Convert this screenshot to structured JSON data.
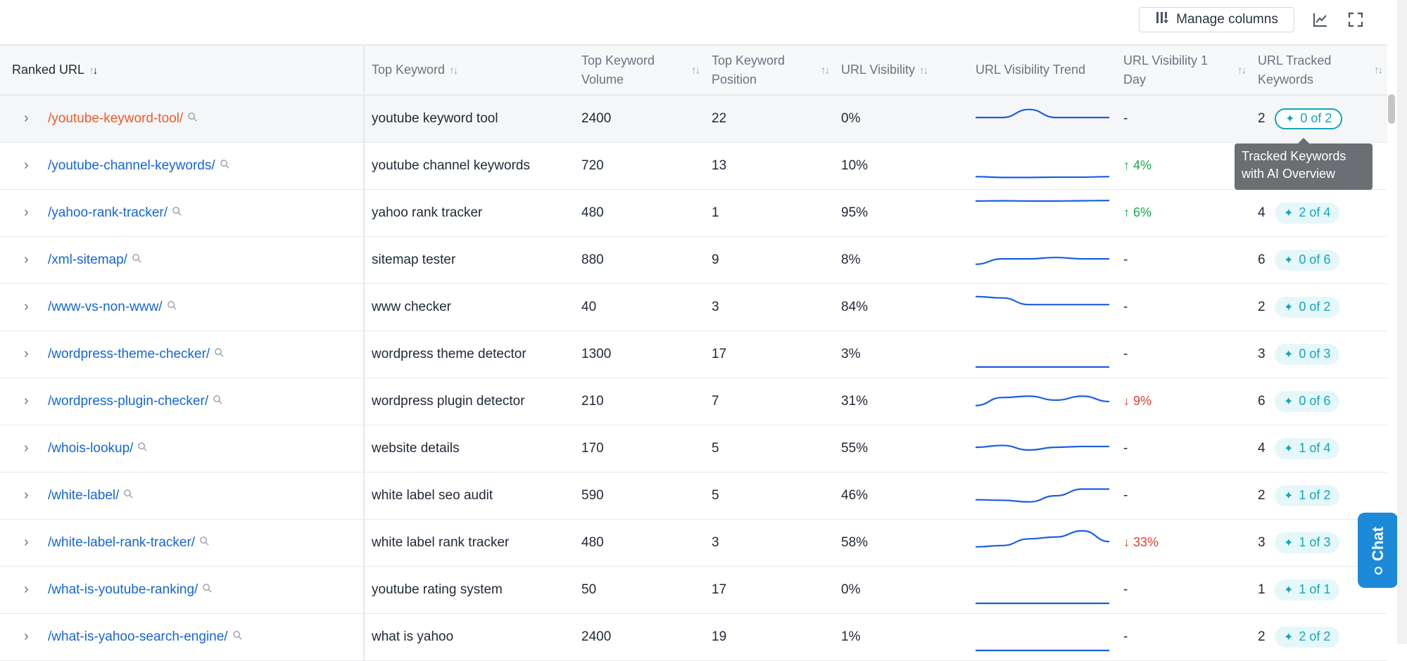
{
  "toolbar": {
    "manage_columns_label": "Manage columns",
    "chart_icon": "chart-line-icon",
    "fullscreen_icon": "fullscreen-icon"
  },
  "columns": {
    "ranked_url": "Ranked URL",
    "top_keyword": "Top Keyword",
    "top_keyword_volume": "Top Keyword Volume",
    "top_keyword_position": "Top Keyword Position",
    "url_visibility": "URL Visibility",
    "url_visibility_trend": "URL Visibility Trend",
    "url_visibility_1day": "URL Visibility 1 Day",
    "url_tracked_keywords": "URL Tracked Keywords"
  },
  "rows": [
    {
      "url": "/youtube-keyword-tool/",
      "keyword": "youtube keyword tool",
      "volume": "2400",
      "position": "22",
      "visibility": "0%",
      "trend": [
        0.55,
        0.55,
        0.85,
        0.55,
        0.55,
        0.55
      ],
      "day": {
        "dir": "none",
        "text": "-"
      },
      "tracked": "2",
      "ai": "0 of 2",
      "selected": true
    },
    {
      "url": "/youtube-channel-keywords/",
      "keyword": "youtube channel keywords",
      "volume": "720",
      "position": "13",
      "visibility": "10%",
      "trend": [
        0.1,
        0.07,
        0.07,
        0.08,
        0.08,
        0.1
      ],
      "day": {
        "dir": "up",
        "text": "4%"
      },
      "tracked": "",
      "ai": "",
      "selected": false
    },
    {
      "url": "/yahoo-rank-tracker/",
      "keyword": "yahoo rank tracker",
      "volume": "480",
      "position": "1",
      "visibility": "95%",
      "trend": [
        0.95,
        0.96,
        0.95,
        0.95,
        0.96,
        0.97
      ],
      "day": {
        "dir": "up",
        "text": "6%"
      },
      "tracked": "4",
      "ai": "2 of 4",
      "selected": false
    },
    {
      "url": "/xml-sitemap/",
      "keyword": "sitemap tester",
      "volume": "880",
      "position": "9",
      "visibility": "8%",
      "trend": [
        0.35,
        0.55,
        0.55,
        0.6,
        0.55,
        0.55
      ],
      "day": {
        "dir": "none",
        "text": "-"
      },
      "tracked": "6",
      "ai": "0 of 6",
      "selected": false
    },
    {
      "url": "/www-vs-non-www/",
      "keyword": "www checker",
      "volume": "40",
      "position": "3",
      "visibility": "84%",
      "trend": [
        0.9,
        0.85,
        0.6,
        0.6,
        0.6,
        0.6
      ],
      "day": {
        "dir": "none",
        "text": "-"
      },
      "tracked": "2",
      "ai": "0 of 2",
      "selected": false
    },
    {
      "url": "/wordpress-theme-checker/",
      "keyword": "wordpress theme detector",
      "volume": "1300",
      "position": "17",
      "visibility": "3%",
      "trend": [
        0.03,
        0.03,
        0.03,
        0.03,
        0.03,
        0.03
      ],
      "day": {
        "dir": "none",
        "text": "-"
      },
      "tracked": "3",
      "ai": "0 of 3",
      "selected": false
    },
    {
      "url": "/wordpress-plugin-checker/",
      "keyword": "wordpress plugin detector",
      "volume": "210",
      "position": "7",
      "visibility": "31%",
      "trend": [
        0.35,
        0.65,
        0.7,
        0.55,
        0.7,
        0.5
      ],
      "day": {
        "dir": "down",
        "text": "9%"
      },
      "tracked": "6",
      "ai": "0 of 6",
      "selected": false
    },
    {
      "url": "/whois-lookup/",
      "keyword": "website details",
      "volume": "170",
      "position": "5",
      "visibility": "55%",
      "trend": [
        0.55,
        0.62,
        0.45,
        0.55,
        0.58,
        0.58
      ],
      "day": {
        "dir": "none",
        "text": "-"
      },
      "tracked": "4",
      "ai": "1 of 4",
      "selected": false
    },
    {
      "url": "/white-label/",
      "keyword": "white label seo audit",
      "volume": "590",
      "position": "5",
      "visibility": "46%",
      "trend": [
        0.35,
        0.33,
        0.27,
        0.5,
        0.75,
        0.75
      ],
      "day": {
        "dir": "none",
        "text": "-"
      },
      "tracked": "2",
      "ai": "1 of 2",
      "selected": false
    },
    {
      "url": "/white-label-rank-tracker/",
      "keyword": "white label rank tracker",
      "volume": "480",
      "position": "3",
      "visibility": "58%",
      "trend": [
        0.35,
        0.4,
        0.65,
        0.72,
        0.95,
        0.55
      ],
      "day": {
        "dir": "down",
        "text": "33%"
      },
      "tracked": "3",
      "ai": "1 of 3",
      "selected": false
    },
    {
      "url": "/what-is-youtube-ranking/",
      "keyword": "youtube rating system",
      "volume": "50",
      "position": "17",
      "visibility": "0%",
      "trend": [
        0.0,
        0.0,
        0.0,
        0.0,
        0.0,
        0.0
      ],
      "day": {
        "dir": "none",
        "text": "-"
      },
      "tracked": "1",
      "ai": "1 of 1",
      "selected": false
    },
    {
      "url": "/what-is-yahoo-search-engine/",
      "keyword": "what is yahoo",
      "volume": "2400",
      "position": "19",
      "visibility": "1%",
      "trend": [
        0.0,
        0.0,
        0.0,
        0.0,
        0.0,
        0.0
      ],
      "day": {
        "dir": "none",
        "text": "-"
      },
      "tracked": "2",
      "ai": "2 of 2",
      "selected": false
    }
  ],
  "tooltip": {
    "text": "Tracked Keywords with AI Overview"
  },
  "chat": {
    "label": "Chat"
  },
  "colors": {
    "link": "#1565d8",
    "selected_link": "#f05a28",
    "trend_line": "#1b5fe0",
    "up": "#1aa84b",
    "down": "#e23b2e",
    "ai_badge": "#11a5c0",
    "chat": "#1c8ad8"
  }
}
